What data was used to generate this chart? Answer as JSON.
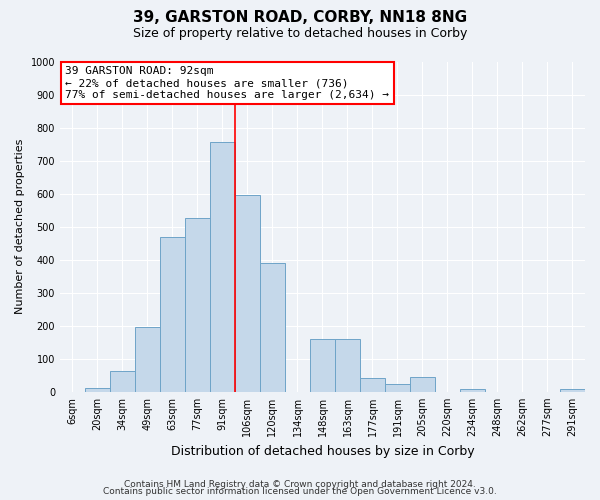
{
  "title": "39, GARSTON ROAD, CORBY, NN18 8NG",
  "subtitle": "Size of property relative to detached houses in Corby",
  "xlabel": "Distribution of detached houses by size in Corby",
  "ylabel": "Number of detached properties",
  "bar_labels": [
    "6sqm",
    "20sqm",
    "34sqm",
    "49sqm",
    "63sqm",
    "77sqm",
    "91sqm",
    "106sqm",
    "120sqm",
    "134sqm",
    "148sqm",
    "163sqm",
    "177sqm",
    "191sqm",
    "205sqm",
    "220sqm",
    "234sqm",
    "248sqm",
    "262sqm",
    "277sqm",
    "291sqm"
  ],
  "bar_values": [
    0,
    13,
    62,
    195,
    470,
    525,
    755,
    595,
    390,
    0,
    160,
    160,
    42,
    25,
    45,
    0,
    10,
    0,
    0,
    0,
    10
  ],
  "bar_color": "#c5d8ea",
  "bar_edge_color": "#6ea4c8",
  "vline_color": "red",
  "annotation_line1": "39 GARSTON ROAD: 92sqm",
  "annotation_line2": "← 22% of detached houses are smaller (736)",
  "annotation_line3": "77% of semi-detached houses are larger (2,634) →",
  "annotation_box_facecolor": "white",
  "annotation_box_edgecolor": "red",
  "ylim": [
    0,
    1000
  ],
  "yticks": [
    0,
    100,
    200,
    300,
    400,
    500,
    600,
    700,
    800,
    900,
    1000
  ],
  "bg_color": "#eef2f7",
  "grid_color": "white",
  "title_fontsize": 11,
  "subtitle_fontsize": 9,
  "xlabel_fontsize": 9,
  "ylabel_fontsize": 8,
  "tick_fontsize": 7,
  "annot_fontsize": 8,
  "footer_fontsize": 6.5,
  "footer_line1": "Contains HM Land Registry data © Crown copyright and database right 2024.",
  "footer_line2": "Contains public sector information licensed under the Open Government Licence v3.0."
}
